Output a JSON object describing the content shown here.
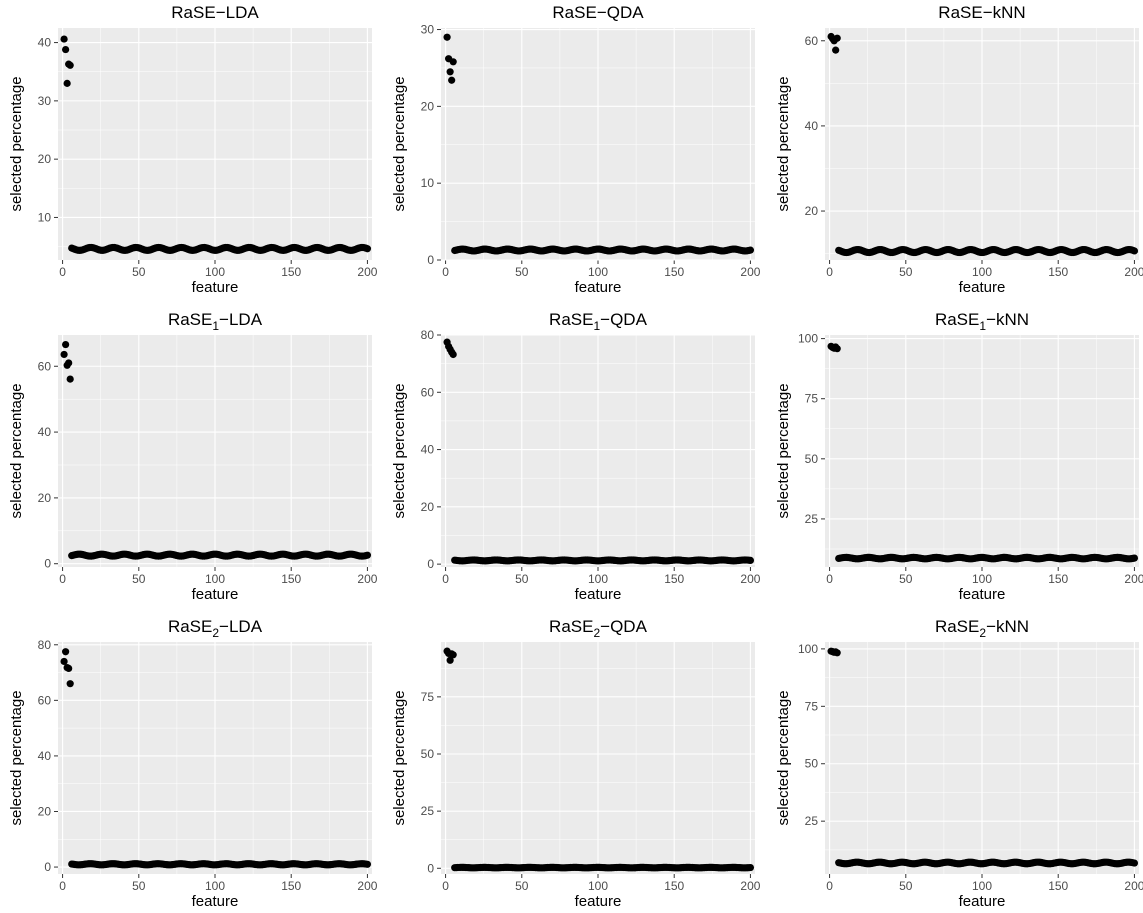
{
  "chart_data": [
    {
      "type": "scatter",
      "title_main": "RaSE",
      "title_sub": "",
      "title_suffix": "−LDA",
      "xlabel": "feature",
      "ylabel": "selected percentage",
      "xlim": [
        -3,
        203
      ],
      "ylim": [
        2.7,
        42.5
      ],
      "xticks": [
        0,
        50,
        100,
        150,
        200
      ],
      "yticks": [
        10,
        20,
        30,
        40
      ],
      "signal_points": [
        [
          1,
          40.6
        ],
        [
          2,
          38.8
        ],
        [
          3,
          33.0
        ],
        [
          4,
          36.3
        ],
        [
          5,
          36.1
        ]
      ],
      "noise_range": [
        6,
        200
      ],
      "noise_level": 4.6,
      "noise_jitter": 0.25
    },
    {
      "type": "scatter",
      "title_main": "RaSE",
      "title_sub": "",
      "title_suffix": "−QDA",
      "xlabel": "feature",
      "ylabel": "selected percentage",
      "xlim": [
        -3,
        203
      ],
      "ylim": [
        0,
        30.2
      ],
      "xticks": [
        0,
        50,
        100,
        150,
        200
      ],
      "yticks": [
        0,
        10,
        20,
        30
      ],
      "signal_points": [
        [
          1,
          29.0
        ],
        [
          2,
          26.2
        ],
        [
          3,
          24.5
        ],
        [
          4,
          23.4
        ],
        [
          5,
          25.8
        ]
      ],
      "noise_range": [
        6,
        200
      ],
      "noise_level": 1.3,
      "noise_jitter": 0.12
    },
    {
      "type": "scatter",
      "title_main": "RaSE",
      "title_sub": "",
      "title_suffix": "−kNN",
      "xlabel": "feature",
      "ylabel": "selected percentage",
      "xlim": [
        -3,
        203
      ],
      "ylim": [
        8.5,
        63.0
      ],
      "xticks": [
        0,
        50,
        100,
        150,
        200
      ],
      "yticks": [
        20,
        40,
        60
      ],
      "signal_points": [
        [
          1,
          61.0
        ],
        [
          2,
          60.5
        ],
        [
          3,
          60.0
        ],
        [
          4,
          57.8
        ],
        [
          5,
          60.6
        ]
      ],
      "noise_range": [
        6,
        200
      ],
      "noise_level": 10.6,
      "noise_jitter": 0.35
    },
    {
      "type": "scatter",
      "title_main": "RaSE",
      "title_sub": "1",
      "title_suffix": "−LDA",
      "xlabel": "feature",
      "ylabel": "selected percentage",
      "xlim": [
        -3,
        203
      ],
      "ylim": [
        -1,
        69.5
      ],
      "xticks": [
        0,
        50,
        100,
        150,
        200
      ],
      "yticks": [
        0,
        20,
        40,
        60
      ],
      "signal_points": [
        [
          1,
          63.6
        ],
        [
          2,
          66.6
        ],
        [
          3,
          60.3
        ],
        [
          4,
          61.0
        ],
        [
          5,
          56.1
        ]
      ],
      "noise_range": [
        6,
        200
      ],
      "noise_level": 2.6,
      "noise_jitter": 0.3
    },
    {
      "type": "scatter",
      "title_main": "RaSE",
      "title_sub": "1",
      "title_suffix": "−QDA",
      "xlabel": "feature",
      "ylabel": "selected percentage",
      "xlim": [
        -3,
        203
      ],
      "ylim": [
        -1,
        80.0
      ],
      "xticks": [
        0,
        50,
        100,
        150,
        200
      ],
      "yticks": [
        0,
        20,
        40,
        60,
        80
      ],
      "signal_points": [
        [
          1,
          77.5
        ],
        [
          2,
          76.0
        ],
        [
          3,
          75.0
        ],
        [
          4,
          74.0
        ],
        [
          5,
          73.2
        ]
      ],
      "noise_range": [
        6,
        200
      ],
      "noise_level": 1.3,
      "noise_jitter": 0.15
    },
    {
      "type": "scatter",
      "title_main": "RaSE",
      "title_sub": "1",
      "title_suffix": "−kNN",
      "xlabel": "feature",
      "ylabel": "selected percentage",
      "xlim": [
        -3,
        203
      ],
      "ylim": [
        5,
        101.5
      ],
      "xticks": [
        0,
        50,
        100,
        150,
        200
      ],
      "yticks": [
        25,
        50,
        75,
        100
      ],
      "signal_points": [
        [
          1,
          96.8
        ],
        [
          2,
          96.3
        ],
        [
          3,
          96.0
        ],
        [
          4,
          96.5
        ],
        [
          5,
          95.8
        ]
      ],
      "noise_range": [
        6,
        200
      ],
      "noise_level": 8.7,
      "noise_jitter": 0.3
    },
    {
      "type": "scatter",
      "title_main": "RaSE",
      "title_sub": "2",
      "title_suffix": "−LDA",
      "xlabel": "feature",
      "ylabel": "selected percentage",
      "xlim": [
        -3,
        203
      ],
      "ylim": [
        -2.5,
        81.0
      ],
      "xticks": [
        0,
        50,
        100,
        150,
        200
      ],
      "yticks": [
        0,
        20,
        40,
        60,
        80
      ],
      "signal_points": [
        [
          1,
          74.0
        ],
        [
          2,
          77.5
        ],
        [
          3,
          71.8
        ],
        [
          4,
          71.5
        ],
        [
          5,
          66.0
        ]
      ],
      "noise_range": [
        6,
        200
      ],
      "noise_level": 1.0,
      "noise_jitter": 0.2
    },
    {
      "type": "scatter",
      "title_main": "RaSE",
      "title_sub": "2",
      "title_suffix": "−QDA",
      "xlabel": "feature",
      "ylabel": "selected percentage",
      "xlim": [
        -3,
        203
      ],
      "ylim": [
        -2.5,
        99.0
      ],
      "xticks": [
        0,
        50,
        100,
        150,
        200
      ],
      "yticks": [
        0,
        25,
        50,
        75
      ],
      "signal_points": [
        [
          1,
          95.0
        ],
        [
          2,
          94.0
        ],
        [
          3,
          91.0
        ],
        [
          4,
          93.8
        ],
        [
          5,
          93.4
        ]
      ],
      "noise_range": [
        6,
        200
      ],
      "noise_level": 0.3,
      "noise_jitter": 0.1
    },
    {
      "type": "scatter",
      "title_main": "RaSE",
      "title_sub": "2",
      "title_suffix": "−kNN",
      "xlabel": "feature",
      "ylabel": "selected percentage",
      "xlim": [
        -3,
        203
      ],
      "ylim": [
        2.0,
        103.0
      ],
      "xticks": [
        0,
        50,
        100,
        150,
        200
      ],
      "yticks": [
        25,
        50,
        75,
        100
      ],
      "signal_points": [
        [
          1,
          99.0
        ],
        [
          2,
          98.8
        ],
        [
          3,
          98.5
        ],
        [
          4,
          98.7
        ],
        [
          5,
          98.3
        ]
      ],
      "noise_range": [
        6,
        200
      ],
      "noise_level": 6.8,
      "noise_jitter": 0.35
    }
  ]
}
